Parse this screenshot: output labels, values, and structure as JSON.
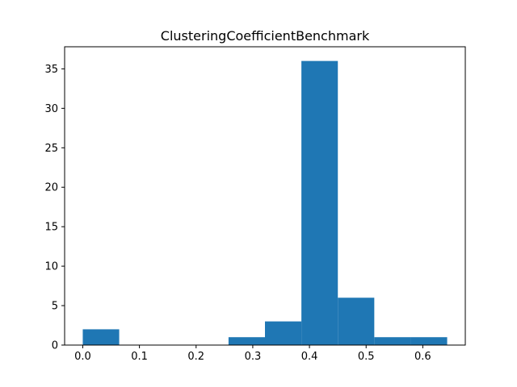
{
  "chart_data": {
    "type": "bar",
    "title": "ClusteringCoefficientBenchmark",
    "xlabel": "",
    "ylabel": "",
    "xlim": [
      -0.032,
      0.675
    ],
    "ylim": [
      0,
      37.8
    ],
    "grid": false,
    "bar_color": "#1f77b4",
    "bins": [
      {
        "start": 0.0,
        "end": 0.0643,
        "count": 2
      },
      {
        "start": 0.0643,
        "end": 0.1286,
        "count": 0
      },
      {
        "start": 0.1286,
        "end": 0.1929,
        "count": 0
      },
      {
        "start": 0.1929,
        "end": 0.2572,
        "count": 0
      },
      {
        "start": 0.2572,
        "end": 0.3215,
        "count": 1
      },
      {
        "start": 0.3215,
        "end": 0.3858,
        "count": 3
      },
      {
        "start": 0.3858,
        "end": 0.4501,
        "count": 36
      },
      {
        "start": 0.4501,
        "end": 0.5144,
        "count": 6
      },
      {
        "start": 0.5144,
        "end": 0.5787,
        "count": 1
      },
      {
        "start": 0.5787,
        "end": 0.643,
        "count": 1
      }
    ],
    "x_ticks": [
      {
        "value": 0.0,
        "label": "0.0"
      },
      {
        "value": 0.1,
        "label": "0.1"
      },
      {
        "value": 0.2,
        "label": "0.2"
      },
      {
        "value": 0.3,
        "label": "0.3"
      },
      {
        "value": 0.4,
        "label": "0.4"
      },
      {
        "value": 0.5,
        "label": "0.5"
      },
      {
        "value": 0.6,
        "label": "0.6"
      }
    ],
    "y_ticks": [
      {
        "value": 0,
        "label": "0"
      },
      {
        "value": 5,
        "label": "5"
      },
      {
        "value": 10,
        "label": "10"
      },
      {
        "value": 15,
        "label": "15"
      },
      {
        "value": 20,
        "label": "20"
      },
      {
        "value": 25,
        "label": "25"
      },
      {
        "value": 30,
        "label": "30"
      },
      {
        "value": 35,
        "label": "35"
      }
    ]
  }
}
